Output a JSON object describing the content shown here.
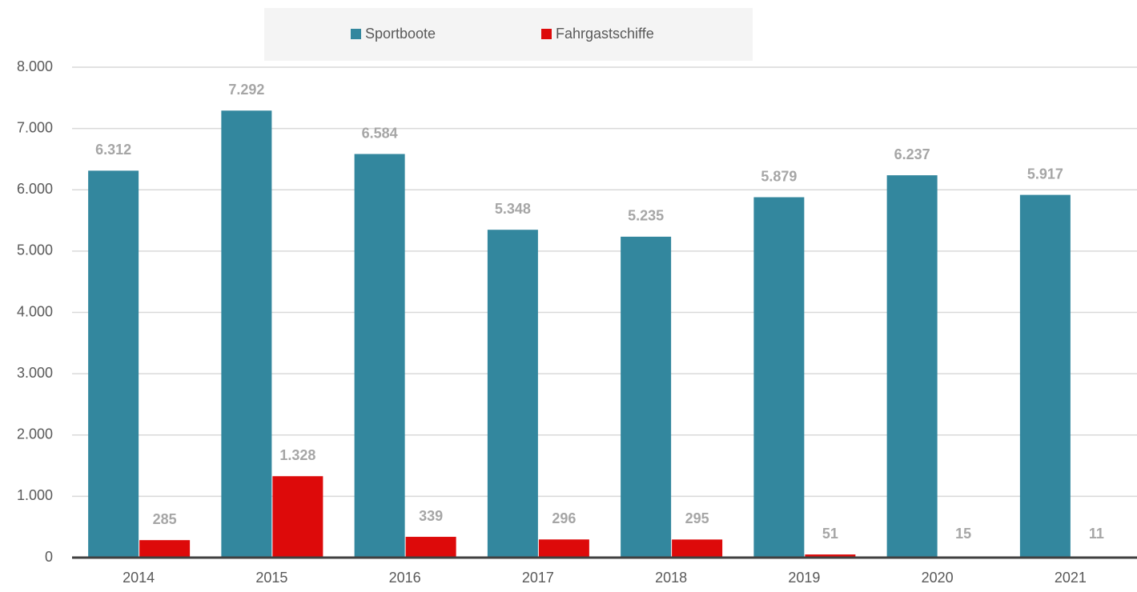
{
  "chart_data": {
    "type": "bar",
    "categories": [
      "2014",
      "2015",
      "2016",
      "2017",
      "2018",
      "2019",
      "2020",
      "2021"
    ],
    "series": [
      {
        "name": "Sportboote",
        "color": "#33879e",
        "values": [
          6312,
          7292,
          6584,
          5348,
          5235,
          5879,
          6237,
          5917
        ],
        "value_labels": [
          "6.312",
          "7.292",
          "6.584",
          "5.348",
          "5.235",
          "5.879",
          "6.237",
          "5.917"
        ]
      },
      {
        "name": "Fahrgastschiffe",
        "color": "#dd0a0a",
        "values": [
          285,
          1328,
          339,
          296,
          295,
          51,
          15,
          11
        ],
        "value_labels": [
          "285",
          "1.328",
          "339",
          "296",
          "295",
          "51",
          "15",
          "11"
        ]
      }
    ],
    "ylim": [
      0,
      8000
    ],
    "yticks": [
      0,
      {
        "value": 1000,
        "label": "1.000"
      },
      {
        "value": 2000,
        "label": "2.000"
      },
      {
        "value": 3000,
        "label": "3.000"
      },
      {
        "value": 4000,
        "label": "4.000"
      },
      {
        "value": 5000,
        "label": "5.000"
      },
      {
        "value": 6000,
        "label": "6.000"
      },
      {
        "value": 7000,
        "label": "7.000"
      },
      {
        "value": 8000,
        "label": "8.000"
      }
    ],
    "grid": true,
    "legend": "top"
  }
}
